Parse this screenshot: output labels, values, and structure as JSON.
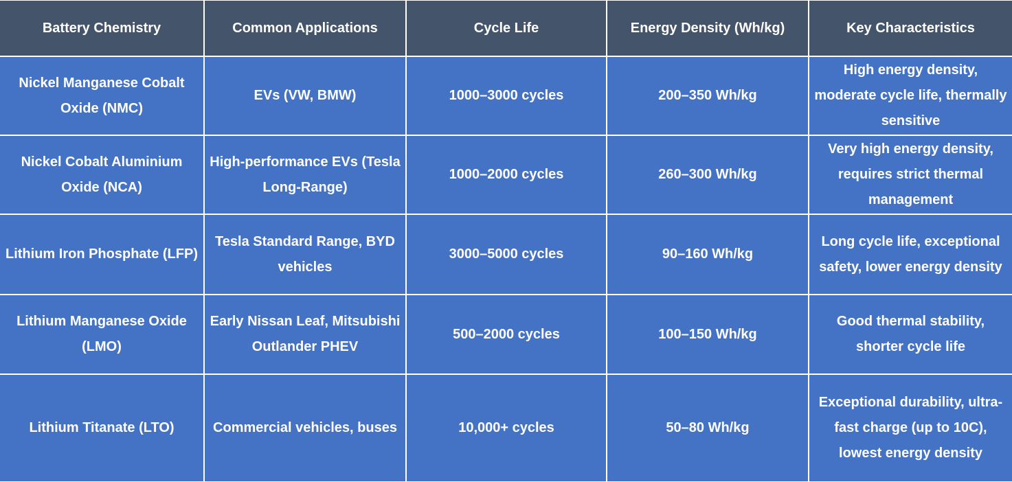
{
  "table": {
    "header": [
      "Battery Chemistry",
      "Common Applications",
      "Cycle Life",
      "Energy Density (Wh/kg)",
      "Key Characteristics"
    ],
    "rows": [
      [
        "Nickel Manganese Cobalt Oxide (NMC)",
        "EVs (VW, BMW)",
        "1000–3000 cycles",
        "200–350 Wh/kg",
        "High energy density, moderate cycle life, thermally sensitive"
      ],
      [
        "Nickel Cobalt Aluminium Oxide (NCA)",
        "High-performance EVs (Tesla Long-Range)",
        "1000–2000 cycles",
        "260–300 Wh/kg",
        "Very high energy density, requires strict thermal management"
      ],
      [
        "Lithium Iron Phosphate (LFP)",
        "Tesla Standard Range, BYD vehicles",
        "3000–5000 cycles",
        "90–160 Wh/kg",
        "Long cycle life, exceptional safety, lower energy density"
      ],
      [
        "Lithium Manganese Oxide (LMO)",
        "Early Nissan Leaf, Mitsubishi Outlander PHEV",
        "500–2000 cycles",
        "100–150 Wh/kg",
        "Good thermal stability, shorter cycle life"
      ],
      [
        "Lithium Titanate (LTO)",
        "Commercial vehicles, buses",
        "10,000+ cycles",
        "50–80 Wh/kg",
        "Exceptional durability, ultra-fast charge (up to 10C), lowest energy density"
      ]
    ]
  }
}
